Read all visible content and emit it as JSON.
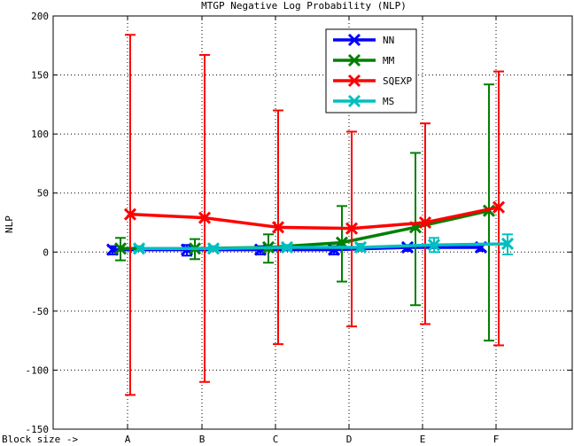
{
  "chart_data": {
    "type": "line",
    "title": "MTGP Negative Log Probability (NLP)",
    "ylabel": "NLP",
    "xlabel": "Block size ->",
    "categories": [
      "A",
      "B",
      "C",
      "D",
      "E",
      "F"
    ],
    "ylim": [
      -150,
      200
    ],
    "yticks": [
      -150,
      -100,
      -50,
      0,
      50,
      100,
      150,
      200
    ],
    "grid": true,
    "legend_position": "top-right",
    "series": [
      {
        "name": "NN",
        "color": "#0000ff",
        "values": [
          2,
          2,
          2,
          2,
          4,
          4
        ],
        "err_low": [
          -2,
          -3,
          -2,
          -2,
          1,
          1
        ],
        "err_high": [
          5,
          6,
          5,
          5,
          6,
          7
        ]
      },
      {
        "name": "MM",
        "color": "#008000",
        "values": [
          3,
          3,
          4,
          8,
          21,
          35
        ],
        "err_low": [
          -7,
          -6,
          -9,
          -25,
          -45,
          -75
        ],
        "err_high": [
          12,
          11,
          15,
          39,
          84,
          142
        ]
      },
      {
        "name": "SQEXP",
        "color": "#ff0000",
        "values": [
          32,
          29,
          21,
          20,
          25,
          38
        ],
        "err_low": [
          -121,
          -110,
          -78,
          -63,
          -61,
          -79
        ],
        "err_high": [
          184,
          167,
          120,
          102,
          109,
          153
        ]
      },
      {
        "name": "MS",
        "color": "#00bfbf",
        "values": [
          3,
          3,
          4,
          4,
          6,
          7
        ],
        "err_low": [
          1,
          1,
          2,
          1,
          0,
          -2
        ],
        "err_high": [
          5,
          5,
          6,
          7,
          12,
          15
        ]
      }
    ]
  }
}
